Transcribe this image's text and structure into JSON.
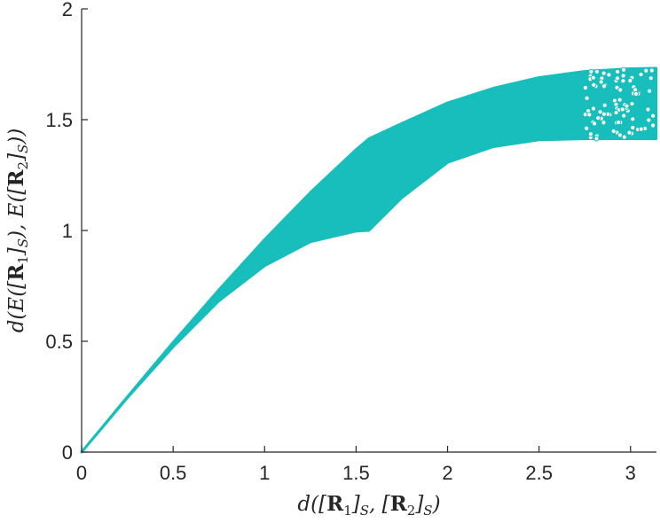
{
  "chart_data": {
    "type": "scatter",
    "title": "",
    "xlabel": "d([R1]S, [R2]S)",
    "ylabel": "d(E([R1]S), E([R2]S))",
    "xlim": [
      0,
      3.1416
    ],
    "ylim": [
      0,
      2
    ],
    "xticks": [
      0,
      0.5,
      1,
      1.5,
      2,
      2.5,
      3
    ],
    "yticks": [
      0,
      0.5,
      1,
      1.5,
      2
    ],
    "xtick_labels": [
      "0",
      "0.5",
      "1",
      "1.5",
      "2",
      "2.5",
      "3"
    ],
    "ytick_labels": [
      "0",
      "0.5",
      "1",
      "1.5",
      "2"
    ],
    "grid": false,
    "marker": "circle-open",
    "color": "#17BEBB",
    "envelope": {
      "x": [
        0,
        0.25,
        0.5,
        0.75,
        1.0,
        1.25,
        1.5,
        1.57,
        1.75,
        2.0,
        2.25,
        2.5,
        2.75,
        3.0,
        3.14
      ],
      "upper": [
        0,
        0.249,
        0.495,
        0.732,
        0.959,
        1.171,
        1.365,
        1.414,
        1.483,
        1.576,
        1.642,
        1.69,
        1.718,
        1.73,
        1.732
      ],
      "lower": [
        0,
        0.245,
        0.475,
        0.682,
        0.841,
        0.949,
        0.997,
        1.0,
        1.148,
        1.307,
        1.378,
        1.409,
        1.414,
        1.414,
        1.414
      ]
    }
  }
}
